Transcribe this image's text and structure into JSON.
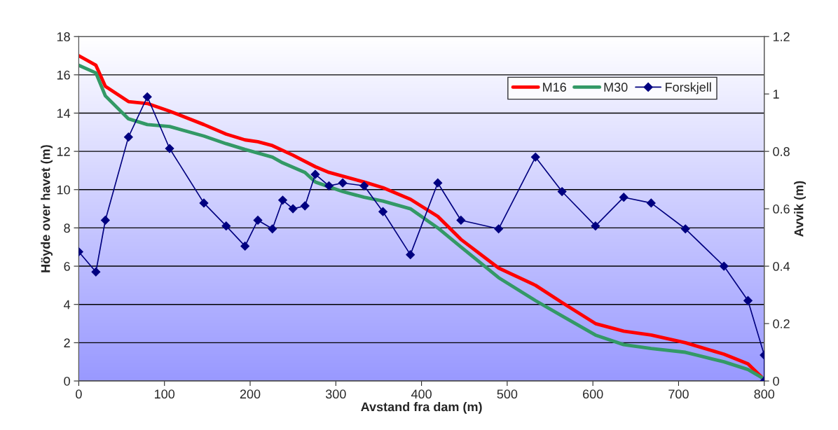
{
  "chart_data": {
    "type": "line",
    "xlabel": "Avstand fra dam (m)",
    "ylabel": "Höyde over havet (m)",
    "y2label": "Avvik (m)",
    "xlim": [
      0,
      800
    ],
    "xticks": [
      0,
      100,
      200,
      300,
      400,
      500,
      600,
      700,
      800
    ],
    "ylim": [
      0,
      18
    ],
    "yticks": [
      0,
      2,
      4,
      6,
      8,
      10,
      12,
      14,
      16,
      18
    ],
    "y2lim": [
      0,
      1.2
    ],
    "y2ticks": [
      0,
      0.2,
      0.4,
      0.6,
      0.8,
      1,
      1.2
    ],
    "grid": "y",
    "legend": "top right",
    "series": [
      {
        "name": "M16",
        "color": "#ff0000",
        "marker": "none",
        "x": [
          0,
          20,
          31,
          58,
          80,
          106,
          146,
          172,
          194,
          209,
          226,
          250,
          276,
          292,
          333,
          355,
          387,
          419,
          446,
          490,
          533,
          564,
          603,
          636,
          668,
          708,
          753,
          781,
          797
        ],
        "values": [
          17.0,
          16.5,
          15.4,
          14.6,
          14.5,
          14.1,
          13.4,
          12.9,
          12.6,
          12.5,
          12.3,
          11.8,
          11.2,
          10.9,
          10.4,
          10.1,
          9.5,
          8.6,
          7.4,
          5.9,
          5.0,
          4.1,
          3.0,
          2.6,
          2.4,
          2.0,
          1.4,
          0.9,
          0.2
        ]
      },
      {
        "name": "M30",
        "color": "#339966",
        "marker": "none",
        "x": [
          0,
          20,
          31,
          58,
          80,
          106,
          146,
          172,
          194,
          226,
          238,
          264,
          276,
          308,
          333,
          355,
          387,
          419,
          446,
          490,
          533,
          564,
          603,
          636,
          668,
          708,
          753,
          781,
          800
        ],
        "values": [
          16.5,
          16.1,
          14.9,
          13.7,
          13.4,
          13.3,
          12.8,
          12.4,
          12.1,
          11.7,
          11.4,
          10.9,
          10.4,
          9.9,
          9.6,
          9.4,
          9.0,
          8.0,
          7.0,
          5.4,
          4.2,
          3.4,
          2.4,
          1.9,
          1.7,
          1.5,
          1.0,
          0.6,
          0.1
        ]
      },
      {
        "name": "Forskjell",
        "color": "#000080",
        "marker": "diamond",
        "axis": "y2",
        "x": [
          0,
          20,
          31,
          58,
          80,
          106,
          146,
          172,
          194,
          209,
          226,
          238,
          250,
          264,
          276,
          292,
          308,
          333,
          355,
          387,
          419,
          446,
          490,
          533,
          564,
          603,
          636,
          668,
          708,
          753,
          781,
          800,
          800
        ],
        "values": [
          0.45,
          0.38,
          0.56,
          0.85,
          0.99,
          0.81,
          0.62,
          0.54,
          0.47,
          0.56,
          0.53,
          0.63,
          0.6,
          0.61,
          0.72,
          0.68,
          0.69,
          0.68,
          0.59,
          0.44,
          0.69,
          0.56,
          0.53,
          0.78,
          0.66,
          0.54,
          0.64,
          0.62,
          0.53,
          0.4,
          0.28,
          0.09,
          0
        ]
      }
    ]
  }
}
